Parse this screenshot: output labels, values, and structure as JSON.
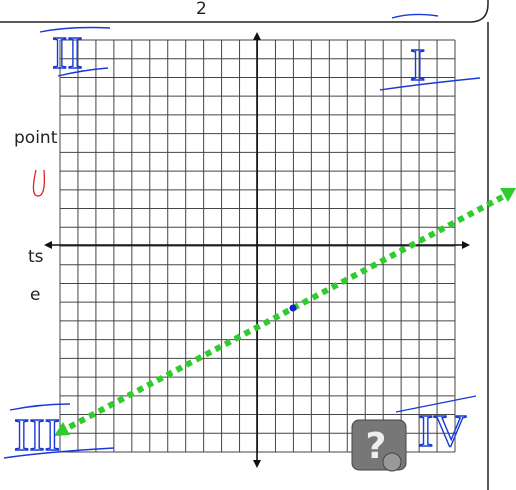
{
  "header_fragment": "2",
  "quadrant_labels": [
    "I",
    "II",
    "III",
    "IV"
  ],
  "text_fragments": [
    "point",
    "ts",
    "e"
  ],
  "help_icon": "?"
}
